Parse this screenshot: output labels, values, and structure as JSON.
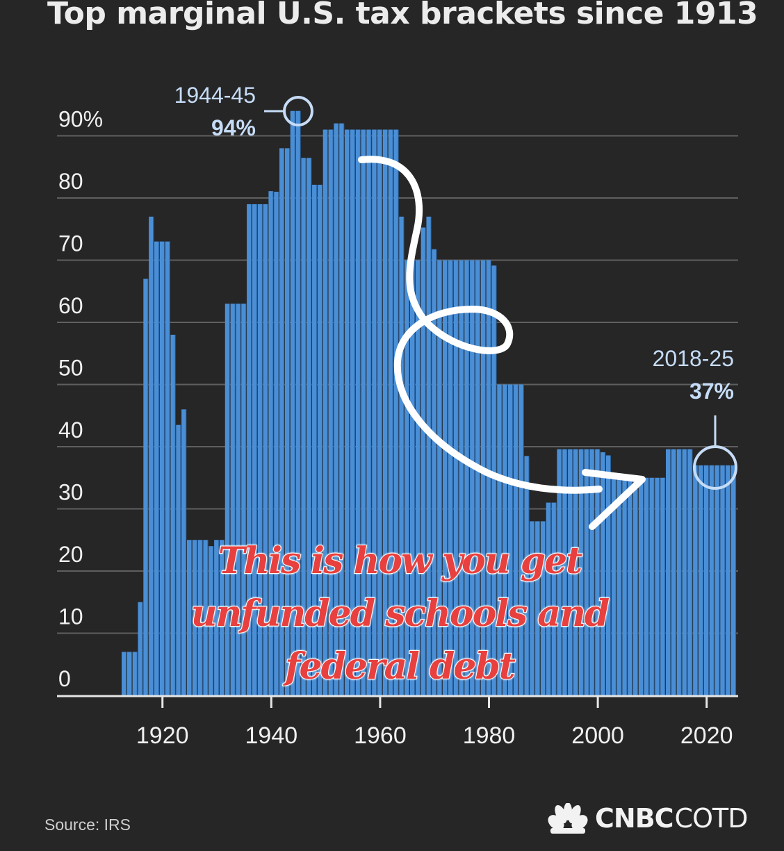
{
  "title": "Top marginal U.S. tax brackets since 1913",
  "source": "Source: IRS",
  "brand": {
    "name": "CNBC",
    "suffix": "COTD",
    "logo_icon": "peacock-icon"
  },
  "caption": {
    "lines": [
      "This is how you get",
      "unfunded schools and",
      "federal debt"
    ],
    "color": "#e8403e"
  },
  "annotations": {
    "peak_years": "1944-45",
    "peak_value": "94%",
    "current_years": "2018-25",
    "current_value": "37%",
    "arrow_icon": "hand-drawn-loop-arrow-icon"
  },
  "colors": {
    "background": "#262627",
    "bar": "#4a8fd6",
    "annotation": "#c6dcf6"
  },
  "chart_data": {
    "type": "bar",
    "title": "Top marginal U.S. tax brackets since 1913",
    "xlabel": "",
    "ylabel": "",
    "xlim": [
      1913,
      2025
    ],
    "ylim": [
      0,
      90
    ],
    "y_ticks": [
      "90%",
      "80",
      "70",
      "60",
      "50",
      "40",
      "30",
      "20",
      "10",
      "0"
    ],
    "x_ticks": [
      "1920",
      "1940",
      "1960",
      "1980",
      "2000",
      "2020"
    ],
    "grid": true,
    "x": [
      1913,
      1914,
      1915,
      1916,
      1917,
      1918,
      1919,
      1920,
      1921,
      1922,
      1923,
      1924,
      1925,
      1926,
      1927,
      1928,
      1929,
      1930,
      1931,
      1932,
      1933,
      1934,
      1935,
      1936,
      1937,
      1938,
      1939,
      1940,
      1941,
      1942,
      1943,
      1944,
      1945,
      1946,
      1947,
      1948,
      1949,
      1950,
      1951,
      1952,
      1953,
      1954,
      1955,
      1956,
      1957,
      1958,
      1959,
      1960,
      1961,
      1962,
      1963,
      1964,
      1965,
      1966,
      1967,
      1968,
      1969,
      1970,
      1971,
      1972,
      1973,
      1974,
      1975,
      1976,
      1977,
      1978,
      1979,
      1980,
      1981,
      1982,
      1983,
      1984,
      1985,
      1986,
      1987,
      1988,
      1989,
      1990,
      1991,
      1992,
      1993,
      1994,
      1995,
      1996,
      1997,
      1998,
      1999,
      2000,
      2001,
      2002,
      2003,
      2004,
      2005,
      2006,
      2007,
      2008,
      2009,
      2010,
      2011,
      2012,
      2013,
      2014,
      2015,
      2016,
      2017,
      2018,
      2019,
      2020,
      2021,
      2022,
      2023,
      2024,
      2025
    ],
    "values": [
      7,
      7,
      7,
      15,
      67,
      77,
      73,
      73,
      73,
      58,
      43.5,
      46,
      25,
      25,
      25,
      25,
      24,
      25,
      25,
      63,
      63,
      63,
      63,
      79,
      79,
      79,
      79,
      81.1,
      81,
      88,
      88,
      94,
      94,
      86.45,
      86.45,
      82.13,
      82.13,
      91,
      91,
      92,
      92,
      91,
      91,
      91,
      91,
      91,
      91,
      91,
      91,
      91,
      91,
      77,
      70,
      70,
      70,
      75.25,
      77,
      71.75,
      70,
      70,
      70,
      70,
      70,
      70,
      70,
      70,
      70,
      70,
      69.13,
      50,
      50,
      50,
      50,
      50,
      38.5,
      28,
      28,
      28,
      31,
      31,
      39.6,
      39.6,
      39.6,
      39.6,
      39.6,
      39.6,
      39.6,
      39.6,
      39.1,
      38.6,
      35,
      35,
      35,
      35,
      35,
      35,
      35,
      35,
      35,
      35,
      39.6,
      39.6,
      39.6,
      39.6,
      39.6,
      37,
      37,
      37,
      37,
      37,
      37,
      37,
      37
    ]
  }
}
